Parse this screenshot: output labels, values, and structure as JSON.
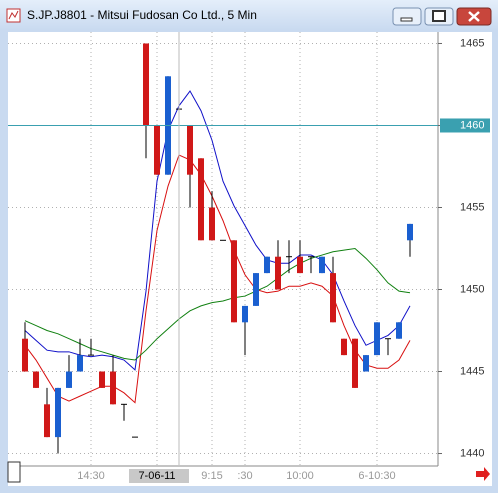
{
  "chart_data": {
    "type": "candlestick",
    "title": "S.JP.J8801 - Mitsui Fudosan Co Ltd., 5 Min",
    "categories": [
      null,
      null,
      null,
      null,
      null,
      null,
      "14:30",
      null,
      null,
      null,
      null,
      null,
      "7-06-11",
      null,
      null,
      null,
      null,
      "9:15",
      null,
      null,
      ":30",
      null,
      null,
      null,
      null,
      "10:00",
      null,
      null,
      null,
      null,
      null,
      null,
      "6-10:30",
      null,
      null,
      null
    ],
    "open": [
      1447,
      1445,
      1443,
      1441,
      1444,
      1445,
      1446,
      1445,
      1445,
      1443,
      1441,
      1465,
      1460,
      1457,
      1461,
      1460,
      1458,
      1455,
      1453,
      1453,
      1448,
      1449,
      1451,
      1452,
      1452,
      1452,
      1452,
      1451,
      1451,
      1447,
      1447,
      1445,
      1446,
      1447,
      1447,
      1453
    ],
    "high": [
      1448,
      1445,
      1444,
      1444,
      1446,
      1447,
      1447,
      1445,
      1446,
      1443,
      1441,
      1465,
      1460,
      1463,
      1461,
      1460,
      1458,
      1456,
      1453,
      1453,
      1449,
      1451,
      1452,
      1453,
      1453,
      1453,
      1452,
      1452,
      1452,
      1447,
      1447,
      1446,
      1448,
      1447,
      1448,
      1454
    ],
    "low": [
      1445,
      1444,
      1441,
      1440,
      1444,
      1445,
      1446,
      1444,
      1443,
      1442,
      1441,
      1458,
      1457,
      1457,
      1461,
      1455,
      1453,
      1453,
      1453,
      1448,
      1446,
      1449,
      1451,
      1450,
      1451,
      1451,
      1451,
      1451,
      1448,
      1446,
      1444,
      1445,
      1446,
      1446,
      1447,
      1452
    ],
    "close": [
      1445,
      1444,
      1441,
      1444,
      1445,
      1446,
      1446,
      1444,
      1443,
      1443,
      1441,
      1460,
      1457,
      1463,
      1461,
      1457,
      1453,
      1453,
      1453,
      1448,
      1449,
      1451,
      1452,
      1450,
      1452,
      1451,
      1452,
      1452,
      1448,
      1446,
      1444,
      1446,
      1448,
      1447,
      1448,
      1454
    ],
    "up_color": "#1a5fd0",
    "down_color": "#d01818",
    "flat_color": "#000000",
    "series": [
      {
        "color": "#1010c8",
        "values": [
          1447.5,
          1446.9,
          1446.3,
          1446.2,
          1446.2,
          1446,
          1445.9,
          1446,
          1445.9,
          1445.7,
          1445.1,
          1449.9,
          1456.6,
          1459.7,
          1461.2,
          1462.1,
          1460.9,
          1459.1,
          1456.6,
          1455.1,
          1453.9,
          1452.7,
          1451.8,
          1451.6,
          1451.6,
          1452.1,
          1452.1,
          1451.8,
          1450.9,
          1449.3,
          1447.8,
          1446.6,
          1446.9,
          1447.2,
          1447.8,
          1449
        ]
      },
      {
        "color": "#d81010",
        "values": [
          1446.6,
          1445.7,
          1444.6,
          1443.5,
          1443.2,
          1443.5,
          1443.8,
          1444.1,
          1444.1,
          1443.7,
          1443.1,
          1448.7,
          1453.6,
          1456.3,
          1458.2,
          1457.9,
          1457,
          1455.7,
          1454.2,
          1452.4,
          1450.9,
          1450,
          1449.8,
          1449.9,
          1450.2,
          1450.2,
          1450.4,
          1450.2,
          1449.6,
          1447.8,
          1446.3,
          1445.4,
          1445.2,
          1445.2,
          1445.7,
          1446.9
        ]
      },
      {
        "color": "#108010",
        "values": [
          1448.1,
          1447.8,
          1447.5,
          1447.3,
          1447,
          1446.7,
          1446.4,
          1446.2,
          1446,
          1445.8,
          1445.7,
          1446.3,
          1447,
          1447.6,
          1448.2,
          1448.7,
          1449,
          1449.2,
          1449.3,
          1449.5,
          1449.6,
          1449.9,
          1450.2,
          1450.7,
          1451.2,
          1451.6,
          1451.9,
          1452.1,
          1452.3,
          1452.4,
          1452.5,
          1451.9,
          1451.2,
          1450.4,
          1449.9,
          1449.8
        ]
      }
    ],
    "ylim": [
      1439.3,
      1465.7
    ],
    "yticks": [
      1440,
      1445,
      1450,
      1455,
      1460,
      1465
    ],
    "grid": true,
    "crosshair": {
      "x_index": 14,
      "price": 1460,
      "color": "#3aa0b0"
    },
    "highlighted_category": 12
  }
}
